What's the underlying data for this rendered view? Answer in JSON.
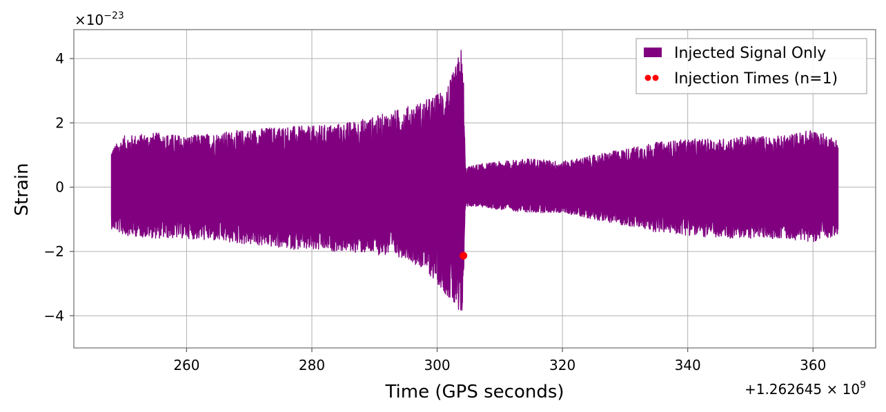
{
  "chart_data": {
    "type": "line",
    "title": "",
    "xlabel": "Time (GPS seconds)",
    "ylabel": "Strain",
    "x_offset_label": "+1.262645 × 10",
    "x_offset_exponent": "9",
    "y_multiplier_label": "×10",
    "y_multiplier_exponent": "−23",
    "xlim": [
      242,
      370
    ],
    "ylim": [
      -5,
      4.9
    ],
    "x_ticks": [
      260,
      280,
      300,
      320,
      340,
      360
    ],
    "x_tick_labels": [
      "260",
      "280",
      "300",
      "320",
      "340",
      "360"
    ],
    "y_ticks": [
      -4,
      -2,
      0,
      2,
      4
    ],
    "y_tick_labels": [
      "−4",
      "−2",
      "0",
      "2",
      "4"
    ],
    "grid": true,
    "legend_position": "top-right",
    "series": [
      {
        "name": "Injected Signal Only",
        "color": "#800080",
        "kind": "strain-envelope",
        "x_range": [
          248,
          364
        ],
        "envelope_x": [
          248,
          250,
          255,
          260,
          265,
          270,
          275,
          280,
          285,
          290,
          295,
          298,
          300,
          302,
          303,
          303.8,
          304.2,
          304.5,
          306,
          310,
          315,
          320,
          325,
          330,
          335,
          340,
          345,
          350,
          355,
          360,
          364
        ],
        "envelope_upper": [
          1.2,
          1.6,
          1.7,
          1.6,
          1.7,
          1.8,
          1.9,
          1.9,
          2.0,
          2.2,
          2.5,
          2.7,
          2.9,
          3.3,
          3.8,
          4.4,
          3.5,
          0.6,
          0.7,
          0.8,
          0.9,
          0.8,
          1.0,
          1.2,
          1.4,
          1.5,
          1.5,
          1.6,
          1.6,
          1.8,
          1.5
        ],
        "envelope_lower": [
          -1.3,
          -1.5,
          -1.6,
          -1.6,
          -1.7,
          -1.8,
          -1.9,
          -2.0,
          -2.0,
          -2.1,
          -2.2,
          -2.6,
          -3.0,
          -3.5,
          -3.9,
          -4.5,
          -3.2,
          -0.6,
          -0.6,
          -0.7,
          -0.8,
          -0.8,
          -1.0,
          -1.2,
          -1.4,
          -1.5,
          -1.6,
          -1.6,
          -1.6,
          -1.7,
          -1.5
        ]
      },
      {
        "name": "Injection Times (n=1)",
        "color": "#ff0000",
        "kind": "scatter",
        "points": [
          {
            "x": 304.2,
            "y": -2.13
          }
        ]
      }
    ]
  }
}
